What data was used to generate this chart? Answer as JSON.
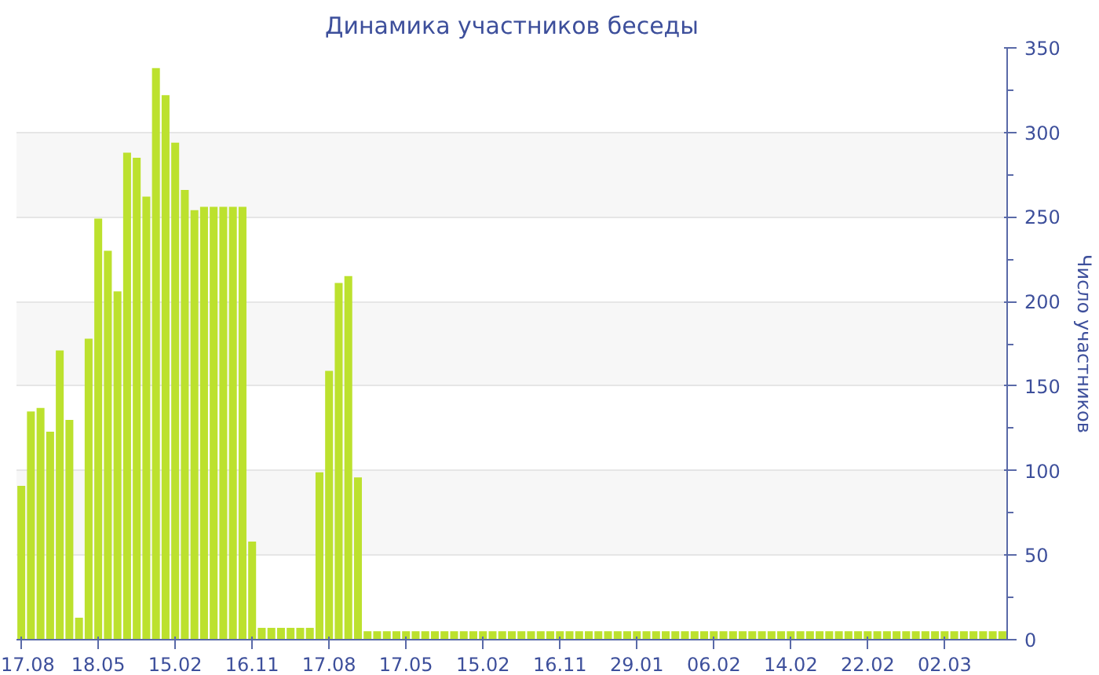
{
  "chart_data": {
    "type": "bar",
    "title": "Динамика участников беседы",
    "ylabel": "Число участников",
    "categories": [
      "17.08",
      null,
      null,
      null,
      null,
      null,
      null,
      null,
      "18.05",
      null,
      null,
      null,
      null,
      null,
      null,
      null,
      "15.02",
      null,
      null,
      null,
      null,
      null,
      null,
      null,
      "16.11",
      null,
      null,
      null,
      null,
      null,
      null,
      null,
      "17.08",
      null,
      null,
      null,
      null,
      null,
      null,
      null,
      "17.05",
      null,
      null,
      null,
      null,
      null,
      null,
      null,
      "15.02",
      null,
      null,
      null,
      null,
      null,
      null,
      null,
      "16.11",
      null,
      null,
      null,
      null,
      null,
      null,
      null,
      "29.01",
      null,
      null,
      null,
      null,
      null,
      null,
      null,
      "06.02",
      null,
      null,
      null,
      null,
      null,
      null,
      null,
      "14.02",
      null,
      null,
      null,
      null,
      null,
      null,
      null,
      "22.02",
      null,
      null,
      null,
      null,
      null,
      null,
      null,
      "02.03",
      null,
      null,
      null,
      null,
      null,
      null
    ],
    "values": [
      91,
      135,
      137,
      123,
      171,
      130,
      13,
      178,
      249,
      230,
      206,
      288,
      285,
      262,
      338,
      322,
      294,
      266,
      254,
      256,
      256,
      256,
      256,
      256,
      58,
      7,
      7,
      7,
      7,
      7,
      7,
      99,
      159,
      211,
      215,
      96,
      5,
      5,
      5,
      5,
      5,
      5,
      5,
      5,
      5,
      5,
      5,
      5,
      5,
      5,
      5,
      5,
      5,
      5,
      5,
      5,
      5,
      5,
      5,
      5,
      5,
      5,
      5,
      5,
      5,
      5,
      5,
      5,
      5,
      5,
      5,
      5,
      5,
      5,
      5,
      5,
      5,
      5,
      5,
      5,
      5,
      5,
      5,
      5,
      5,
      5,
      5,
      5,
      5,
      5,
      5,
      5,
      5,
      5,
      5,
      5,
      5,
      5,
      5,
      5,
      5,
      5,
      5
    ],
    "color": "#bce12e",
    "ylim": [
      0,
      350
    ],
    "yticks": [
      0,
      50,
      100,
      150,
      200,
      250,
      300,
      350
    ],
    "grid": "y"
  }
}
